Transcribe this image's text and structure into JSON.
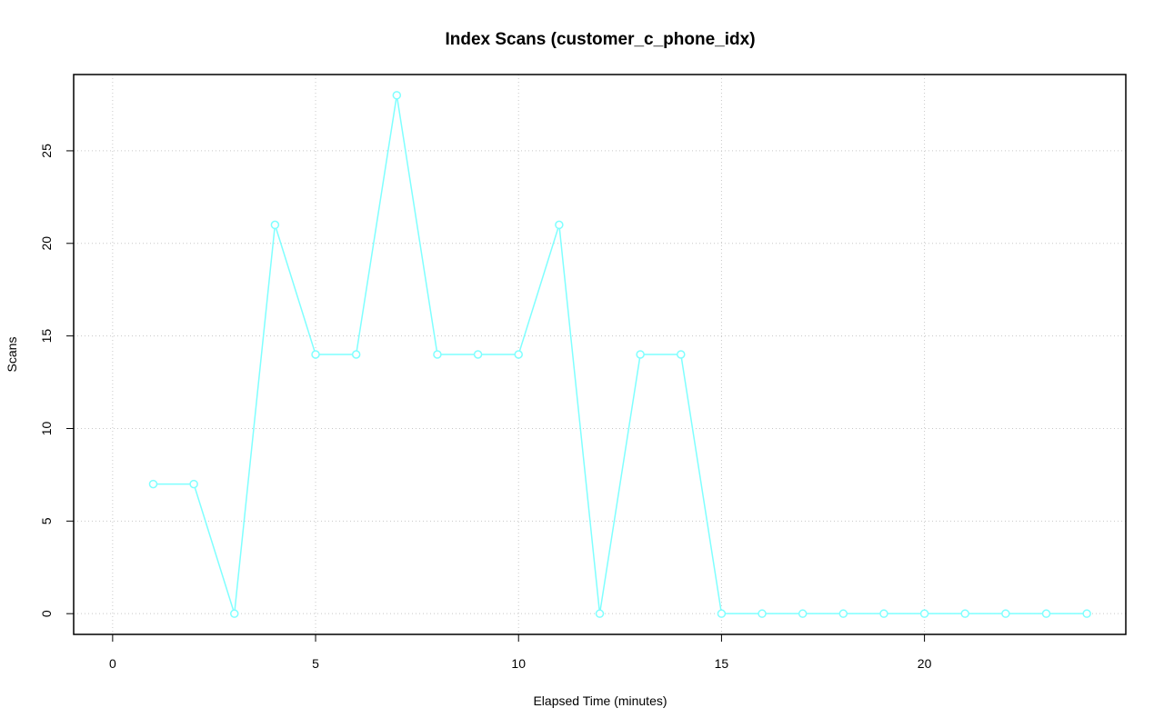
{
  "chart_data": {
    "type": "line",
    "title": "Index Scans (customer_c_phone_idx)",
    "x_label": "Elapsed Time (minutes)",
    "y_label": "Scans",
    "x": [
      1,
      2,
      3,
      4,
      5,
      6,
      7,
      8,
      9,
      10,
      11,
      12,
      13,
      14,
      15,
      16,
      17,
      18,
      19,
      20,
      21,
      22,
      23,
      24
    ],
    "series": [
      {
        "name": "customer_c_phone_idx",
        "color": "#7fffff",
        "values": [
          7,
          7,
          0,
          21,
          14,
          14,
          28,
          14,
          14,
          14,
          21,
          0,
          14,
          14,
          0,
          0,
          0,
          0,
          0,
          0,
          0,
          0,
          0,
          0
        ]
      }
    ],
    "xlim": [
      -0.96,
      24.96
    ],
    "xticks": [
      0,
      5,
      10,
      15,
      20
    ],
    "ylim": [
      -1.12,
      29.12
    ],
    "yticks": [
      0,
      5,
      10,
      15,
      20,
      25
    ],
    "grid": true
  }
}
